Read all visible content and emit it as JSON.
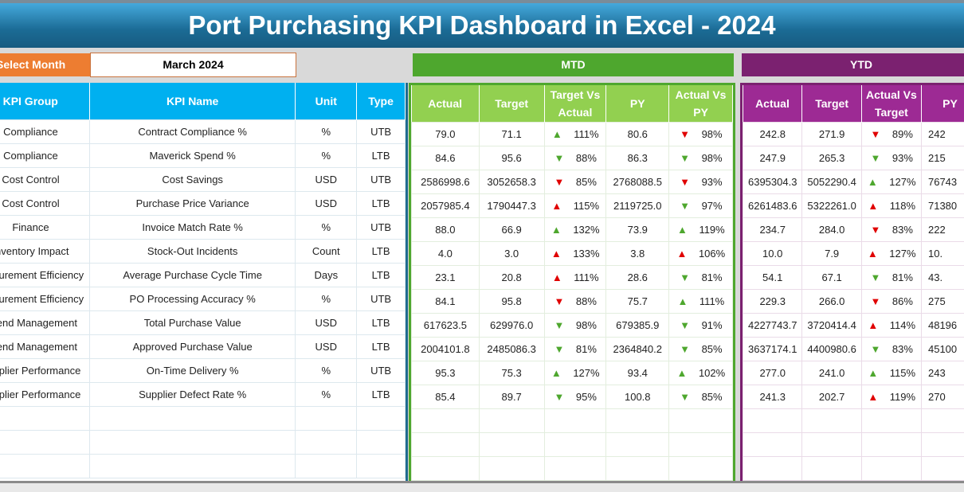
{
  "title": "Port Purchasing KPI Dashboard in Excel - 2024",
  "select_month": {
    "label": "Select Month",
    "value": "March 2024"
  },
  "sections": {
    "mtd": "MTD",
    "ytd": "YTD"
  },
  "colors": {
    "up_good": "#4ea72e",
    "bad": "#e00000",
    "mtd": "#4ea72e",
    "ytd": "#7b2170",
    "kpi_header": "#00b0f0"
  },
  "kpi_headers": [
    "KPI Group",
    "KPI Name",
    "Unit",
    "Type"
  ],
  "mtd_headers": [
    "Actual",
    "Target",
    "Target Vs Actual",
    "PY",
    "Actual Vs PY"
  ],
  "ytd_headers": [
    "Actual",
    "Target",
    "Actual Vs Target",
    "PY"
  ],
  "rows": [
    {
      "group": "Compliance",
      "name": "Contract Compliance %",
      "unit": "%",
      "type": "UTB",
      "mtd": {
        "actual": "79.0",
        "target": "71.1",
        "tva": {
          "dir": "up",
          "color": "green",
          "value": "111%"
        },
        "py": "80.6",
        "avp": {
          "dir": "down",
          "color": "red",
          "value": "98%"
        }
      },
      "ytd": {
        "actual": "242.8",
        "target": "271.9",
        "avt": {
          "dir": "down",
          "color": "red",
          "value": "89%"
        },
        "py": "242"
      }
    },
    {
      "group": "Compliance",
      "name": "Maverick Spend %",
      "unit": "%",
      "type": "LTB",
      "mtd": {
        "actual": "84.6",
        "target": "95.6",
        "tva": {
          "dir": "down",
          "color": "green",
          "value": "88%"
        },
        "py": "86.3",
        "avp": {
          "dir": "down",
          "color": "green",
          "value": "98%"
        }
      },
      "ytd": {
        "actual": "247.9",
        "target": "265.3",
        "avt": {
          "dir": "down",
          "color": "green",
          "value": "93%"
        },
        "py": "215"
      }
    },
    {
      "group": "Cost Control",
      "name": "Cost Savings",
      "unit": "USD",
      "type": "UTB",
      "mtd": {
        "actual": "2586998.6",
        "target": "3052658.3",
        "tva": {
          "dir": "down",
          "color": "red",
          "value": "85%"
        },
        "py": "2768088.5",
        "avp": {
          "dir": "down",
          "color": "red",
          "value": "93%"
        }
      },
      "ytd": {
        "actual": "6395304.3",
        "target": "5052290.4",
        "avt": {
          "dir": "up",
          "color": "green",
          "value": "127%"
        },
        "py": "76743"
      }
    },
    {
      "group": "Cost Control",
      "name": "Purchase Price Variance",
      "unit": "USD",
      "type": "LTB",
      "mtd": {
        "actual": "2057985.4",
        "target": "1790447.3",
        "tva": {
          "dir": "up",
          "color": "red",
          "value": "115%"
        },
        "py": "2119725.0",
        "avp": {
          "dir": "down",
          "color": "green",
          "value": "97%"
        }
      },
      "ytd": {
        "actual": "6261483.6",
        "target": "5322261.0",
        "avt": {
          "dir": "up",
          "color": "red",
          "value": "118%"
        },
        "py": "71380"
      }
    },
    {
      "group": "Finance",
      "name": "Invoice Match Rate %",
      "unit": "%",
      "type": "UTB",
      "mtd": {
        "actual": "88.0",
        "target": "66.9",
        "tva": {
          "dir": "up",
          "color": "green",
          "value": "132%"
        },
        "py": "73.9",
        "avp": {
          "dir": "up",
          "color": "green",
          "value": "119%"
        }
      },
      "ytd": {
        "actual": "234.7",
        "target": "284.0",
        "avt": {
          "dir": "down",
          "color": "red",
          "value": "83%"
        },
        "py": "222"
      }
    },
    {
      "group": "Inventory Impact",
      "name": "Stock-Out Incidents",
      "unit": "Count",
      "type": "LTB",
      "mtd": {
        "actual": "4.0",
        "target": "3.0",
        "tva": {
          "dir": "up",
          "color": "red",
          "value": "133%"
        },
        "py": "3.8",
        "avp": {
          "dir": "up",
          "color": "red",
          "value": "106%"
        }
      },
      "ytd": {
        "actual": "10.0",
        "target": "7.9",
        "avt": {
          "dir": "up",
          "color": "red",
          "value": "127%"
        },
        "py": "10."
      }
    },
    {
      "group": "Procurement Efficiency",
      "name": "Average Purchase Cycle Time",
      "unit": "Days",
      "type": "LTB",
      "mtd": {
        "actual": "23.1",
        "target": "20.8",
        "tva": {
          "dir": "up",
          "color": "red",
          "value": "111%"
        },
        "py": "28.6",
        "avp": {
          "dir": "down",
          "color": "green",
          "value": "81%"
        }
      },
      "ytd": {
        "actual": "54.1",
        "target": "67.1",
        "avt": {
          "dir": "down",
          "color": "green",
          "value": "81%"
        },
        "py": "43."
      }
    },
    {
      "group": "Procurement Efficiency",
      "name": "PO Processing Accuracy %",
      "unit": "%",
      "type": "UTB",
      "mtd": {
        "actual": "84.1",
        "target": "95.8",
        "tva": {
          "dir": "down",
          "color": "red",
          "value": "88%"
        },
        "py": "75.7",
        "avp": {
          "dir": "up",
          "color": "green",
          "value": "111%"
        }
      },
      "ytd": {
        "actual": "229.3",
        "target": "266.0",
        "avt": {
          "dir": "down",
          "color": "red",
          "value": "86%"
        },
        "py": "275"
      }
    },
    {
      "group": "Spend Management",
      "name": "Total Purchase Value",
      "unit": "USD",
      "type": "LTB",
      "mtd": {
        "actual": "617623.5",
        "target": "629976.0",
        "tva": {
          "dir": "down",
          "color": "green",
          "value": "98%"
        },
        "py": "679385.9",
        "avp": {
          "dir": "down",
          "color": "green",
          "value": "91%"
        }
      },
      "ytd": {
        "actual": "4227743.7",
        "target": "3720414.4",
        "avt": {
          "dir": "up",
          "color": "red",
          "value": "114%"
        },
        "py": "48196"
      }
    },
    {
      "group": "Spend Management",
      "name": "Approved Purchase Value",
      "unit": "USD",
      "type": "LTB",
      "mtd": {
        "actual": "2004101.8",
        "target": "2485086.3",
        "tva": {
          "dir": "down",
          "color": "green",
          "value": "81%"
        },
        "py": "2364840.2",
        "avp": {
          "dir": "down",
          "color": "green",
          "value": "85%"
        }
      },
      "ytd": {
        "actual": "3637174.1",
        "target": "4400980.6",
        "avt": {
          "dir": "down",
          "color": "green",
          "value": "83%"
        },
        "py": "45100"
      }
    },
    {
      "group": "Supplier Performance",
      "name": "On-Time Delivery %",
      "unit": "%",
      "type": "UTB",
      "mtd": {
        "actual": "95.3",
        "target": "75.3",
        "tva": {
          "dir": "up",
          "color": "green",
          "value": "127%"
        },
        "py": "93.4",
        "avp": {
          "dir": "up",
          "color": "green",
          "value": "102%"
        }
      },
      "ytd": {
        "actual": "277.0",
        "target": "241.0",
        "avt": {
          "dir": "up",
          "color": "green",
          "value": "115%"
        },
        "py": "243"
      }
    },
    {
      "group": "Supplier Performance",
      "name": "Supplier Defect Rate %",
      "unit": "%",
      "type": "LTB",
      "mtd": {
        "actual": "85.4",
        "target": "89.7",
        "tva": {
          "dir": "down",
          "color": "green",
          "value": "95%"
        },
        "py": "100.8",
        "avp": {
          "dir": "down",
          "color": "green",
          "value": "85%"
        }
      },
      "ytd": {
        "actual": "241.3",
        "target": "202.7",
        "avt": {
          "dir": "up",
          "color": "red",
          "value": "119%"
        },
        "py": "270"
      }
    }
  ]
}
